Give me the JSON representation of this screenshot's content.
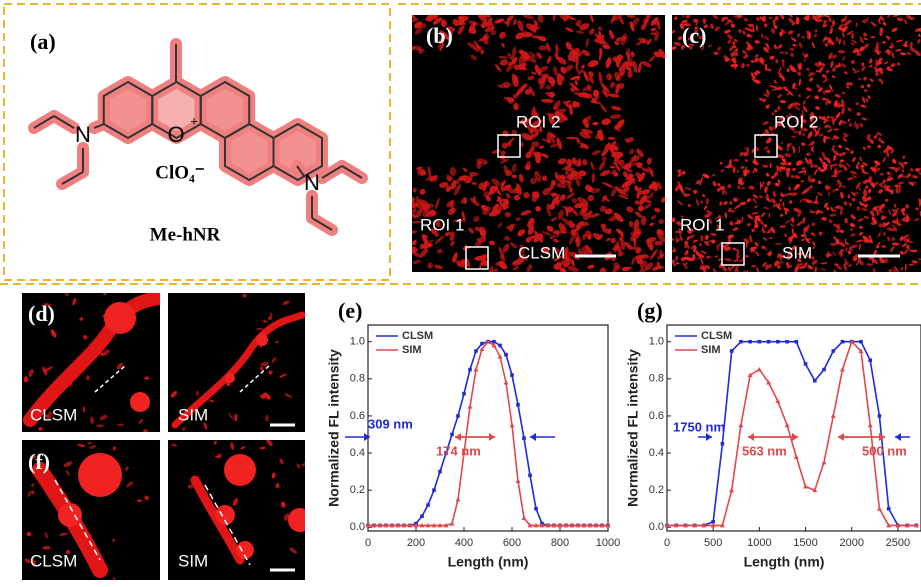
{
  "figure": {
    "a": {
      "label": "(a)",
      "oxygen": "O",
      "charge": "+",
      "n_left": "N",
      "n_right": "N",
      "counterion": "ClO₄⁻",
      "name": "Me-hNR"
    },
    "b": {
      "label": "(b)",
      "roi1": "ROI 1",
      "roi2": "ROI 2",
      "method": "CLSM"
    },
    "c": {
      "label": "(c)",
      "roi1": "ROI 1",
      "roi2": "ROI 2",
      "method": "SIM"
    },
    "d": {
      "label": "(d)",
      "left": "CLSM",
      "right": "SIM"
    },
    "f": {
      "label": "(f)",
      "left": "CLSM",
      "right": "SIM"
    }
  },
  "chart_data": [
    {
      "type": "line",
      "label": "(e)",
      "xlabel": "Length (nm)",
      "ylabel": "Normalized FL intensity",
      "x": [
        0,
        25,
        50,
        75,
        100,
        125,
        150,
        175,
        200,
        225,
        250,
        275,
        300,
        325,
        350,
        375,
        400,
        425,
        450,
        475,
        500,
        525,
        550,
        575,
        600,
        625,
        650,
        675,
        700,
        725,
        750,
        775,
        800,
        825,
        850,
        875,
        900,
        925,
        950,
        975,
        1000
      ],
      "series": [
        {
          "name": "CLSM",
          "color": "#1f2bd6",
          "values": [
            0.01,
            0.01,
            0.01,
            0.01,
            0.01,
            0.01,
            0.01,
            0.01,
            0.02,
            0.06,
            0.12,
            0.2,
            0.3,
            0.4,
            0.5,
            0.6,
            0.72,
            0.85,
            0.95,
            0.99,
            1.0,
            1.0,
            0.98,
            0.93,
            0.82,
            0.66,
            0.48,
            0.28,
            0.1,
            0.02,
            0.01,
            0.01,
            0.01,
            0.01,
            0.01,
            0.01,
            0.01,
            0.01,
            0.01,
            0.01,
            0.01
          ]
        },
        {
          "name": "SIM",
          "color": "#e0484c",
          "values": [
            0.01,
            0.01,
            0.01,
            0.01,
            0.01,
            0.01,
            0.01,
            0.01,
            0.01,
            0.01,
            0.01,
            0.01,
            0.01,
            0.01,
            0.02,
            0.15,
            0.4,
            0.65,
            0.85,
            0.96,
            1.0,
            0.98,
            0.92,
            0.78,
            0.55,
            0.25,
            0.05,
            0.01,
            0.01,
            0.01,
            0.01,
            0.01,
            0.01,
            0.01,
            0.01,
            0.01,
            0.01,
            0.01,
            0.01,
            0.01,
            0.01
          ]
        }
      ],
      "xlim": [
        0,
        1000
      ],
      "xticks": [
        0,
        200,
        400,
        600,
        800,
        1000
      ],
      "ylim": [
        -0.02,
        1.09
      ],
      "yticks": [
        {
          "value": 0,
          "label": "0.0"
        },
        {
          "value": 0.2,
          "label": "0.2"
        },
        {
          "value": 0.4,
          "label": "0.4"
        },
        {
          "value": 0.6,
          "label": "0.6"
        },
        {
          "value": 0.8,
          "label": "0.8"
        },
        {
          "value": 1,
          "label": "1.0"
        }
      ],
      "annotations": [
        "309 nm",
        "174 nm"
      ],
      "legend": "upper left"
    },
    {
      "type": "line",
      "label": "(g)",
      "xlabel": "Length (nm)",
      "ylabel": "Normalized FL intensity",
      "x": [
        0,
        100,
        200,
        300,
        400,
        500,
        600,
        700,
        800,
        900,
        1000,
        1100,
        1200,
        1300,
        1400,
        1500,
        1600,
        1700,
        1800,
        1900,
        2000,
        2100,
        2200,
        2300,
        2400,
        2500,
        2600,
        2700
      ],
      "series": [
        {
          "name": "CLSM",
          "color": "#1f2bd6",
          "values": [
            0.01,
            0.01,
            0.01,
            0.01,
            0.01,
            0.03,
            0.45,
            0.95,
            1.0,
            1.0,
            1.0,
            1.0,
            1.0,
            1.0,
            1.0,
            0.88,
            0.79,
            0.85,
            0.95,
            1.0,
            1.0,
            1.0,
            0.9,
            0.6,
            0.1,
            0.01,
            0.01,
            0.01
          ]
        },
        {
          "name": "SIM",
          "color": "#e0484c",
          "values": [
            0.01,
            0.01,
            0.01,
            0.01,
            0.01,
            0.01,
            0.01,
            0.2,
            0.55,
            0.82,
            0.85,
            0.78,
            0.68,
            0.55,
            0.38,
            0.22,
            0.2,
            0.35,
            0.6,
            0.85,
            1.0,
            0.95,
            0.55,
            0.1,
            0.01,
            0.01,
            0.01,
            0.01
          ]
        }
      ],
      "xlim": [
        0,
        2750
      ],
      "xticks": [
        0,
        500,
        1000,
        1500,
        2000,
        2500
      ],
      "ylim": [
        -0.02,
        1.09
      ],
      "yticks": [
        {
          "value": 0,
          "label": "0.0"
        },
        {
          "value": 0.2,
          "label": "0.2"
        },
        {
          "value": 0.4,
          "label": "0.4"
        },
        {
          "value": 0.6,
          "label": "0.6"
        },
        {
          "value": 0.8,
          "label": "0.8"
        },
        {
          "value": 1,
          "label": "1.0"
        }
      ],
      "annotations": [
        "1750 nm",
        "563 nm",
        "500 nm"
      ],
      "legend": "upper left"
    }
  ]
}
